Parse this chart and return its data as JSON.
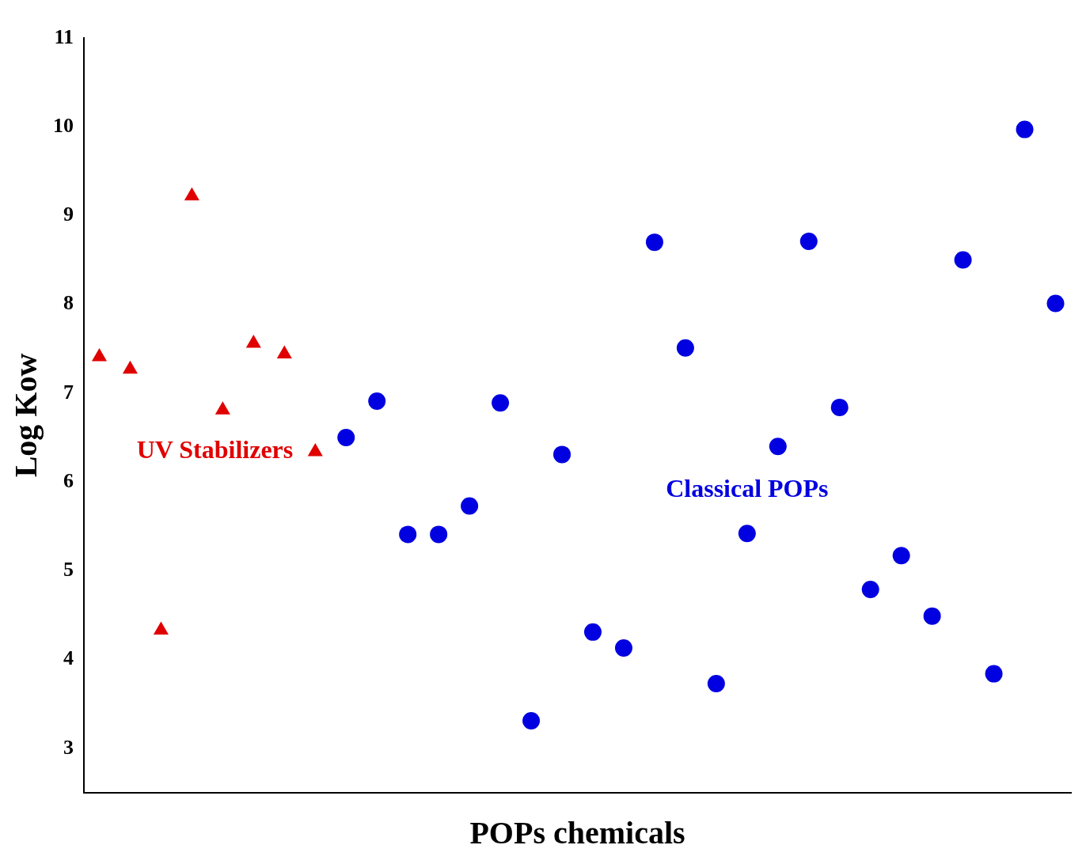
{
  "chart_data": {
    "type": "scatter",
    "xlabel": "POPs chemicals",
    "ylabel": "Log Kow",
    "categories": [
      null,
      null,
      null,
      null,
      null,
      null,
      null,
      null,
      null,
      null,
      null,
      null,
      null,
      null,
      null,
      null,
      null,
      null,
      null,
      null,
      null,
      null,
      null,
      null,
      null,
      null,
      null,
      null,
      null,
      null,
      null,
      null
    ],
    "series": [
      {
        "name": "UV Stabilizers",
        "color": "#e00000",
        "marker": "triangle",
        "values": [
          7.41,
          7.27,
          4.33,
          9.22,
          6.81,
          7.56,
          7.44,
          6.34,
          null,
          null,
          null,
          null,
          null,
          null,
          null,
          null,
          null,
          null,
          null,
          null,
          null,
          null,
          null,
          null,
          null,
          null,
          null,
          null,
          null,
          null,
          null,
          null
        ]
      },
      {
        "name": "Classical POPs",
        "color": "#0000e0",
        "marker": "circle",
        "values": [
          null,
          null,
          null,
          null,
          null,
          null,
          null,
          null,
          6.5,
          6.91,
          5.41,
          5.41,
          5.73,
          6.89,
          3.31,
          6.31,
          4.31,
          4.13,
          8.7,
          7.51,
          3.73,
          5.42,
          6.4,
          8.71,
          6.84,
          4.79,
          5.17,
          4.49,
          8.5,
          3.84,
          9.97,
          8.01
        ]
      }
    ],
    "ylim": [
      2.5,
      11
    ],
    "yticks": [
      3,
      4,
      5,
      6,
      7,
      8,
      9,
      10,
      11
    ],
    "grid": false,
    "legend": false,
    "tick_labels": "y"
  }
}
